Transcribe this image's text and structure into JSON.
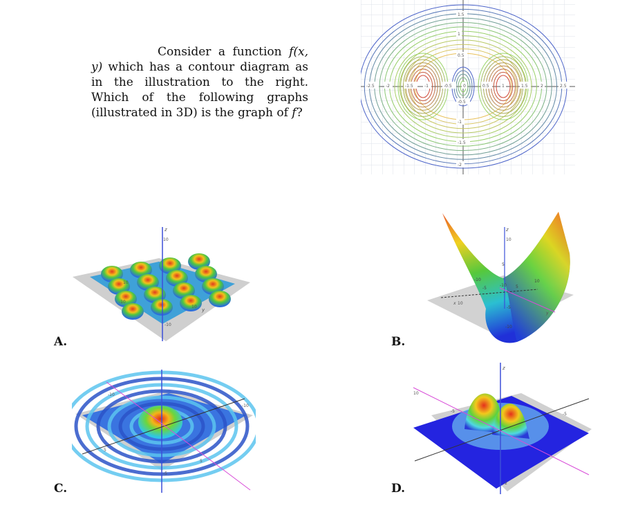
{
  "question": {
    "text_before": "Consider a function ",
    "func": "f(x, y)",
    "text_after": " which has a contour diagram as in the illustration to the right. Which of the following graphs (illustrated in 3D) is the graph of ",
    "func_end": "f",
    "end": "?"
  },
  "contour": {
    "x_ticks": [
      "-2.5",
      "-2",
      "-1.5",
      "-1",
      "-0.5",
      "0",
      "0.5",
      "1",
      "1.5",
      "2",
      "2.5"
    ],
    "y_ticks": [
      "1.5",
      "1",
      "0.5",
      "-0.5",
      "-1",
      "-1.5",
      "-2"
    ],
    "colors": {
      "outer": "#4b63c9",
      "inner": "#d04a3a",
      "mid": "#8fd06a",
      "grid": "#d9dde6"
    }
  },
  "choices": {
    "a": {
      "label": "A.",
      "ticks": [
        "10",
        "10",
        "-10",
        "10",
        "-10"
      ],
      "axis": "z",
      "yaxis": "y"
    },
    "b": {
      "label": "B.",
      "ticks": [
        "10",
        "10",
        "-10",
        "-10",
        "10",
        "5",
        "-5",
        "-5",
        "5",
        "-10"
      ],
      "axis": "z",
      "yaxis": "y",
      "xaxis": "x"
    },
    "c": {
      "label": "C.",
      "ticks": [
        "-10",
        "-10",
        "5",
        "5",
        "-5"
      ]
    },
    "d": {
      "label": "D.",
      "ticks": [
        "10",
        "-5",
        "-5",
        "-2"
      ],
      "axis": "z"
    }
  }
}
